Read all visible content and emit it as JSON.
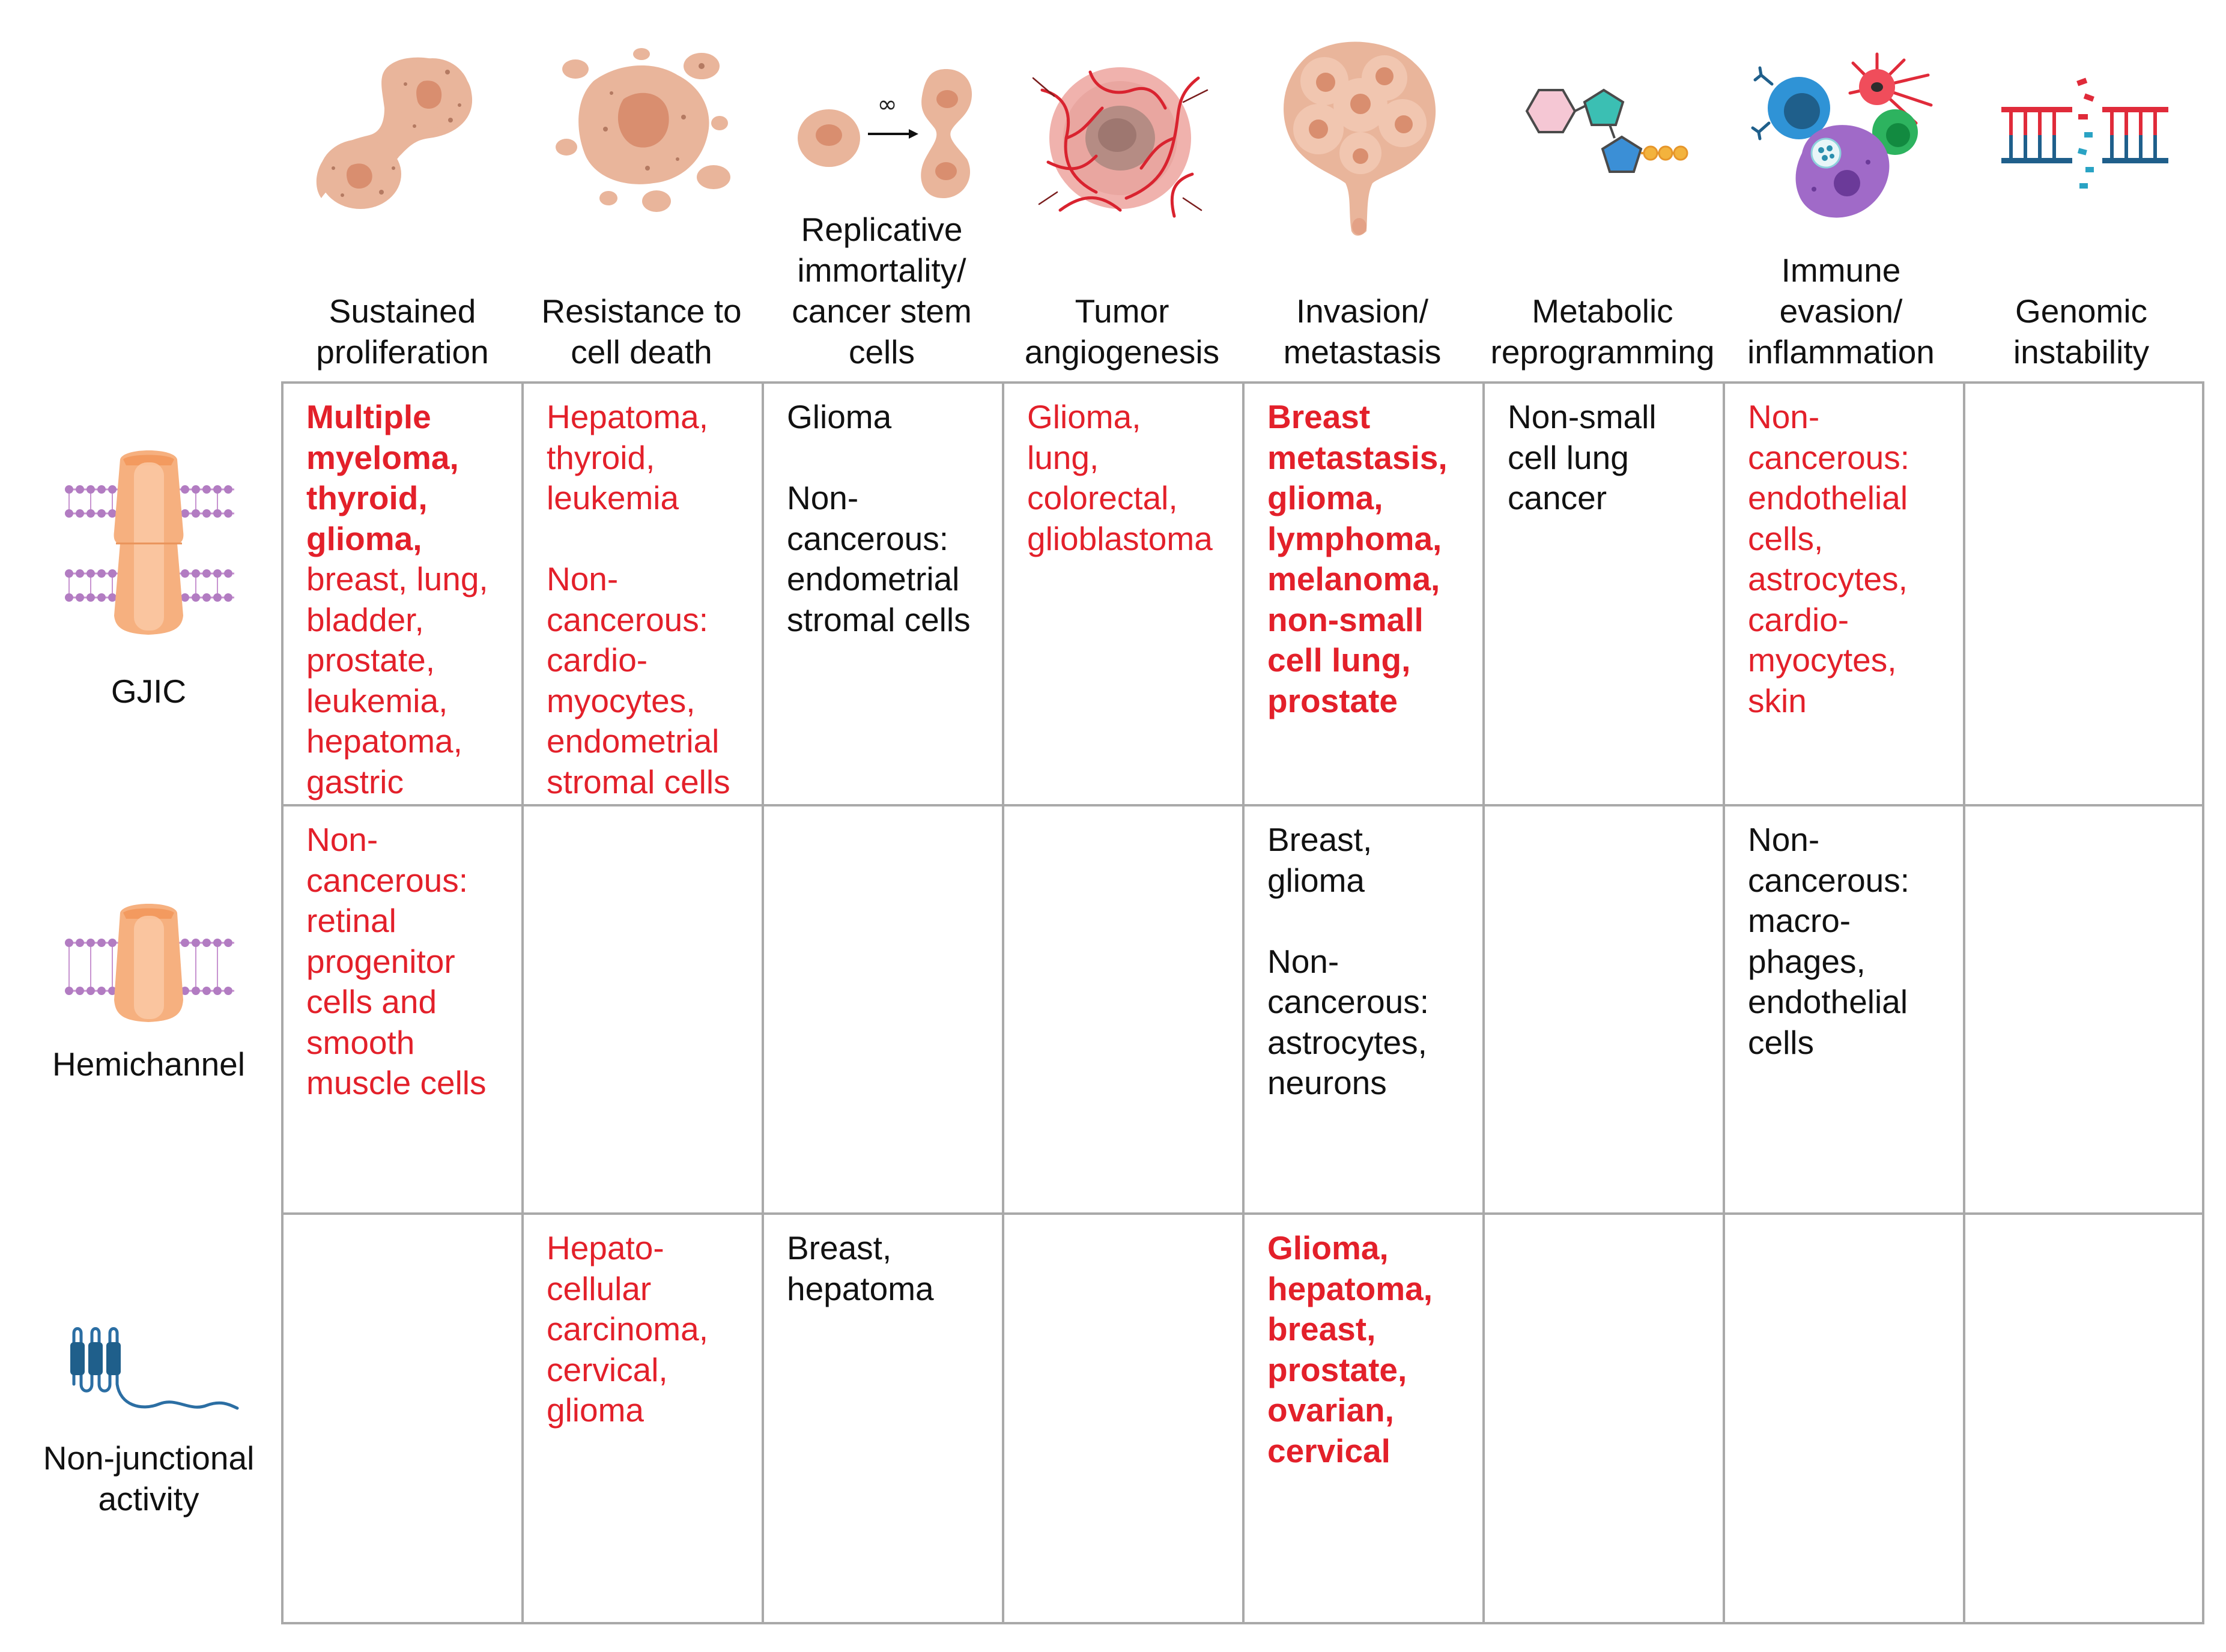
{
  "colors": {
    "red_text": "#e3202a",
    "black_text": "#111111",
    "grid_line": "#a9a9a9",
    "membrane": "#c793d0",
    "channel": "#f6b07f",
    "cell_tan": "#e9b59b",
    "vessel_red": "#d9232f",
    "dark_blue": "#1f5f8b"
  },
  "columns": [
    {
      "label": "Sustained\nproliferation",
      "icon": "dividing-cell-icon"
    },
    {
      "label": "Resistance to\ncell death",
      "icon": "apoptotic-cell-icon"
    },
    {
      "label": "Replicative\nimmortality/\ncancer stem\ncells",
      "icon": "infinite-division-icon",
      "icon_text": "∞"
    },
    {
      "label": "Tumor\nangiogenesis",
      "icon": "vascularized-tumor-icon"
    },
    {
      "label": "Invasion/\nmetastasis",
      "icon": "invading-tumor-icon"
    },
    {
      "label": "Metabolic\nreprogramming",
      "icon": "sugar-phosphate-molecule-icon"
    },
    {
      "label": "Immune\nevasion/\ninflammation",
      "icon": "immune-cells-icon"
    },
    {
      "label": "Genomic\ninstability",
      "icon": "broken-dna-icon"
    }
  ],
  "rows": [
    {
      "label": "GJIC",
      "icon": "gap-junction-icon"
    },
    {
      "label": "Hemichannel",
      "icon": "hemichannel-icon"
    },
    {
      "label": "Non-junctional\nactivity",
      "icon": "transmembrane-protein-icon"
    }
  ],
  "cells": [
    [
      [
        {
          "lines": "Multiple\nmyeloma,\nthyroid,\nglioma,",
          "color": "red",
          "bold": true
        },
        {
          "lines": "breast, lung,\nbladder,\nprostate,\nleukemia,\nhepatoma,\ngastric",
          "color": "red",
          "bold": false,
          "inline": true
        }
      ],
      [
        {
          "lines": "Hepatoma,\nthyroid,\nleukemia",
          "color": "red",
          "bold": false
        },
        {
          "lines": "Non-\ncancerous:\ncardio-\nmyocytes,\nendometrial\nstromal cells",
          "color": "red",
          "bold": false
        }
      ],
      [
        {
          "lines": "Glioma",
          "color": "black",
          "bold": false
        },
        {
          "lines": "Non-\ncancerous:\nendometrial\nstromal cells",
          "color": "black",
          "bold": false
        }
      ],
      [
        {
          "lines": "Glioma,\nlung,\ncolorectal,\nglioblastoma",
          "color": "red",
          "bold": false
        }
      ],
      [
        {
          "lines": "Breast\nmetastasis,\nglioma,\nlymphoma,\nmelanoma,\nnon-small\ncell lung,\nprostate",
          "color": "red",
          "bold": true
        }
      ],
      [
        {
          "lines": "Non-small\ncell lung\ncancer",
          "color": "black",
          "bold": false
        }
      ],
      [
        {
          "lines": "Non-\ncancerous:\nendothelial\ncells,\nastrocytes,\ncardio-\nmyocytes,\nskin",
          "color": "red",
          "bold": false
        }
      ],
      []
    ],
    [
      [
        {
          "lines": "Non-\ncancerous:\nretinal\nprogenitor\ncells and\nsmooth\nmuscle cells",
          "color": "red",
          "bold": false
        }
      ],
      [],
      [],
      [],
      [
        {
          "lines": "Breast,\nglioma",
          "color": "black",
          "bold": false
        },
        {
          "lines": "Non-\ncancerous:\nastrocytes,\nneurons",
          "color": "black",
          "bold": false
        }
      ],
      [],
      [
        {
          "lines": "Non-\ncancerous:\nmacro-\nphages,\nendothelial\ncells",
          "color": "black",
          "bold": false
        }
      ],
      []
    ],
    [
      [],
      [
        {
          "lines": "Hepato-\ncellular\ncarcinoma,\ncervical,\nglioma",
          "color": "red",
          "bold": false
        }
      ],
      [
        {
          "lines": "Breast,\nhepatoma",
          "color": "black",
          "bold": false
        }
      ],
      [],
      [
        {
          "lines": "Glioma,\nhepatoma,\nbreast,\nprostate,\novarian,\ncervical",
          "color": "red",
          "bold": true
        }
      ],
      [],
      [],
      []
    ]
  ]
}
